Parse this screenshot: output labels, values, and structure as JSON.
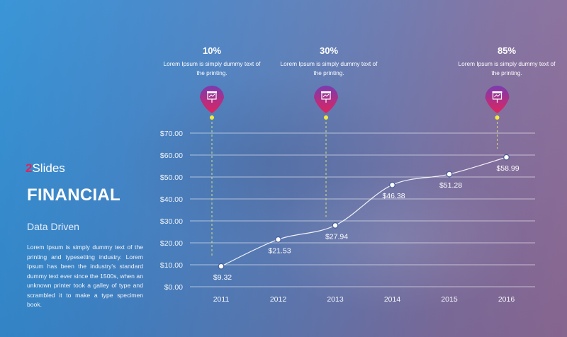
{
  "brand": {
    "number": "2",
    "name": "Slides"
  },
  "title": "FINANCIAL",
  "subtitle": "Data Driven",
  "body_text": "Lorem Ipsum is simply dummy text of the printing and typesetting industry. Lorem Ipsum has been the industry's standard dummy text ever since the 1500s, when an unknown printer took a galley of type and scrambled it to make a type specimen book.",
  "callouts": [
    {
      "percent": "10%",
      "text": "Lorem Ipsum is simply dummy text of the printing.",
      "year": "2011",
      "icon": "presentation-board-icon"
    },
    {
      "percent": "30%",
      "text": "Lorem Ipsum is simply dummy text of the printing.",
      "year": "2013",
      "icon": "presentation-board-icon"
    },
    {
      "percent": "85%",
      "text": "Lorem Ipsum is simply dummy text of the printing.",
      "year": "2016",
      "icon": "presentation-board-icon"
    }
  ],
  "colors": {
    "pin_top": "#7b3bb0",
    "pin_bottom": "#e0245e",
    "marker_dot": "#f4ea3c",
    "leader_line": "#d9e36a",
    "line": "#ffffff",
    "brand_number": "#e0245e"
  },
  "chart_data": {
    "type": "line",
    "categories": [
      "2011",
      "2012",
      "2013",
      "2014",
      "2015",
      "2016"
    ],
    "values": [
      9.32,
      21.53,
      27.94,
      46.38,
      51.28,
      58.99
    ],
    "data_labels": [
      "$9.32",
      "$21.53",
      "$27.94",
      "$46.38",
      "$51.28",
      "$58.99"
    ],
    "y_ticks": [
      "$0.00",
      "$10.00",
      "$20.00",
      "$30.00",
      "$40.00",
      "$50.00",
      "$60.00",
      "$70.00"
    ],
    "ylim": [
      0,
      70
    ],
    "grid": true,
    "smooth": true
  }
}
